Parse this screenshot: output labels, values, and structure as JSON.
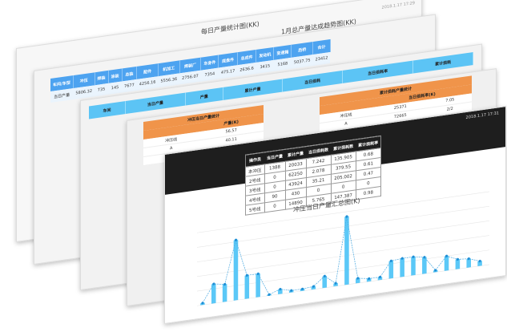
{
  "back_panel": {
    "date": "2018.1.17 17:29",
    "left_title": "每日产量统计图(KK)",
    "right_title": "1月总产量达成趋势图(KK)"
  },
  "blue_table": {
    "headers": [
      "车间/车型",
      "冲压",
      "焊装",
      "涂装",
      "总装",
      "配件",
      "机加工",
      "焊装厂",
      "车身件",
      "底盘件",
      "总成件",
      "发动机",
      "变速箱",
      "后桥",
      "合计"
    ],
    "row": [
      "当日产量",
      "5806.32",
      "735",
      "145",
      "7677",
      "4256.16",
      "5556.36",
      "2756.07",
      "7354",
      "475.17",
      "2636.6",
      "3415",
      "5168",
      "5037.75",
      "23412"
    ]
  },
  "lblue_table": {
    "headers": [
      "车间",
      "当日产量",
      "产量",
      "累计产量",
      "当日损耗",
      "当日损耗率",
      "累计损耗"
    ]
  },
  "orange_table_left": {
    "title": "冲压当日产量统计",
    "unit": "产量(K)",
    "rows": [
      [
        "冲压线",
        "56.57"
      ],
      [
        "A",
        "40.11"
      ],
      [
        "B",
        ""
      ]
    ]
  },
  "orange_table_right": {
    "title": "累计损耗产量统计",
    "sub": "当日损耗率(K)",
    "rows": [
      [
        "冲压线",
        "25371",
        "7.05"
      ],
      [
        "A",
        "72665",
        "2/2"
      ],
      [
        "B",
        "",
        ""
      ]
    ]
  },
  "front_panel": {
    "date": "2018.1.17 17:31",
    "table": {
      "headers": [
        "操作员",
        "当日产量",
        "累计产量",
        "当日损耗数",
        "累计损耗数",
        "累计损耗率"
      ],
      "rows": [
        [
          "本冲压",
          "1388",
          "20033",
          "7.242",
          "135.905",
          "0.68"
        ],
        [
          "2号线",
          "0",
          "62250",
          "2.078",
          "379.55",
          "0.61"
        ],
        [
          "3号线",
          "0",
          "43924",
          "35.21",
          "205.002",
          "0.47"
        ],
        [
          "4号线",
          "90",
          "430",
          "0",
          "0",
          "0"
        ],
        [
          "5号线",
          "0",
          "14890",
          "5.765",
          "147.387",
          "0.98"
        ]
      ]
    },
    "chart_title": "冲压当日产量汇总图(K)"
  },
  "chart_data": {
    "type": "bar",
    "title": "冲压当日产量汇总图(K)",
    "values": [
      2,
      20,
      18,
      62,
      24,
      24,
      1,
      5,
      2,
      2,
      3,
      12,
      3,
      70,
      5,
      3,
      3,
      18,
      19,
      19,
      17,
      2,
      15,
      10,
      9,
      5
    ],
    "line_values": [
      2,
      20,
      18,
      62,
      24,
      24,
      1,
      5,
      2,
      2,
      3,
      12,
      3,
      70,
      5,
      3,
      3,
      18,
      19,
      19,
      17,
      2,
      15,
      10,
      9,
      5
    ],
    "bar_color": "#5bc8f7",
    "line_color": "#4aa8e0",
    "grid": true
  }
}
